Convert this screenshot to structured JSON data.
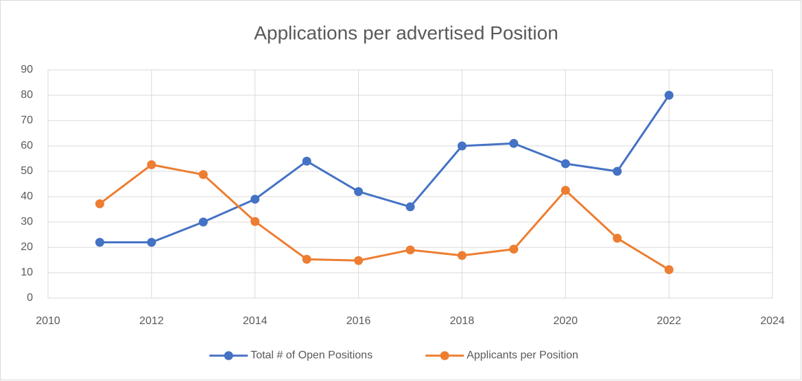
{
  "chart_data": {
    "type": "line",
    "title": "Applications per advertised Position",
    "x": [
      2011,
      2012,
      2013,
      2014,
      2015,
      2016,
      2017,
      2018,
      2019,
      2020,
      2021,
      2022
    ],
    "series": [
      {
        "name": "Total # of Open Positions",
        "color": "#4472c4",
        "values": [
          22,
          22,
          30,
          39,
          54,
          42,
          36,
          60,
          61,
          53,
          50,
          80
        ]
      },
      {
        "name": "Applicants per Position",
        "color": "#ed7d31",
        "values": [
          37.2,
          52.6,
          48.7,
          30.2,
          15.3,
          14.8,
          19,
          16.8,
          19.3,
          42.5,
          23.6,
          11.2
        ]
      }
    ],
    "xlim": [
      2010,
      2024
    ],
    "xticks": [
      2010,
      2012,
      2014,
      2016,
      2018,
      2020,
      2022,
      2024
    ],
    "ylim": [
      0,
      90
    ],
    "yticks": [
      0,
      10,
      20,
      30,
      40,
      50,
      60,
      70,
      80,
      90
    ],
    "grid": true,
    "legend": "bottom"
  }
}
